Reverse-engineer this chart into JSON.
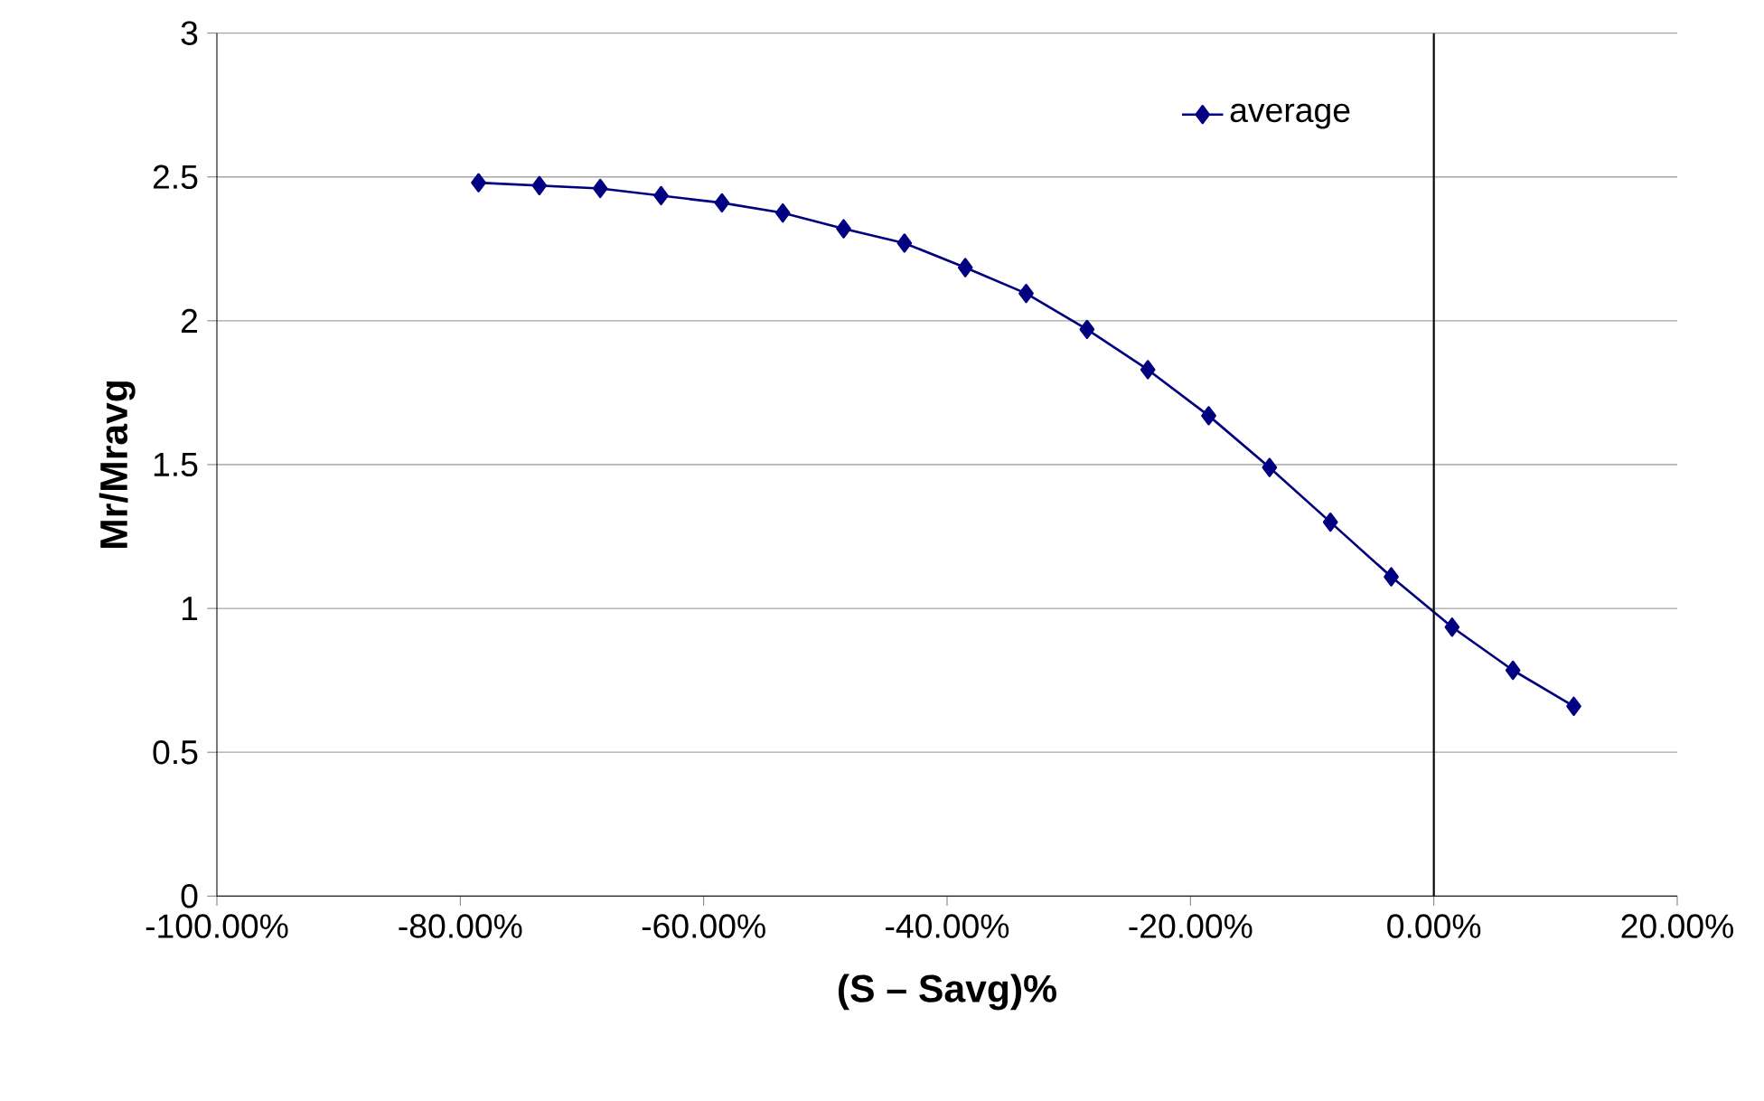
{
  "chart_data": {
    "type": "line",
    "xlabel": "(S – Savg)%",
    "ylabel": "Mr/Mravg",
    "x": [
      -78.5,
      -73.5,
      -68.5,
      -63.5,
      -58.5,
      -53.5,
      -48.5,
      -43.5,
      -38.5,
      -33.5,
      -28.5,
      -23.5,
      -18.5,
      -13.5,
      -8.5,
      -3.5,
      1.5,
      6.5,
      11.5
    ],
    "series": [
      {
        "name": "average",
        "color": "#000080",
        "values": [
          2.48,
          2.47,
          2.46,
          2.435,
          2.41,
          2.375,
          2.32,
          2.27,
          2.185,
          2.095,
          1.97,
          1.83,
          1.67,
          1.49,
          1.3,
          1.11,
          0.935,
          0.785,
          0.66
        ]
      }
    ],
    "xlim": [
      -100,
      20
    ],
    "xticks": [
      {
        "value": -100,
        "label": "-100.00%"
      },
      {
        "value": -80,
        "label": "-80.00%"
      },
      {
        "value": -60,
        "label": "-60.00%"
      },
      {
        "value": -40,
        "label": "-40.00%"
      },
      {
        "value": -20,
        "label": "-20.00%"
      },
      {
        "value": 0,
        "label": "0.00%"
      },
      {
        "value": 20,
        "label": "20.00%"
      }
    ],
    "ylim": [
      0,
      3
    ],
    "yticks": [
      0,
      0.5,
      1,
      1.5,
      2,
      2.5,
      3
    ],
    "ref_lines": [
      {
        "axis": "x",
        "value": 0,
        "color": "#000000"
      }
    ],
    "grid": "y",
    "legend": "top right",
    "marker": "diamond",
    "line_style": "solid"
  }
}
